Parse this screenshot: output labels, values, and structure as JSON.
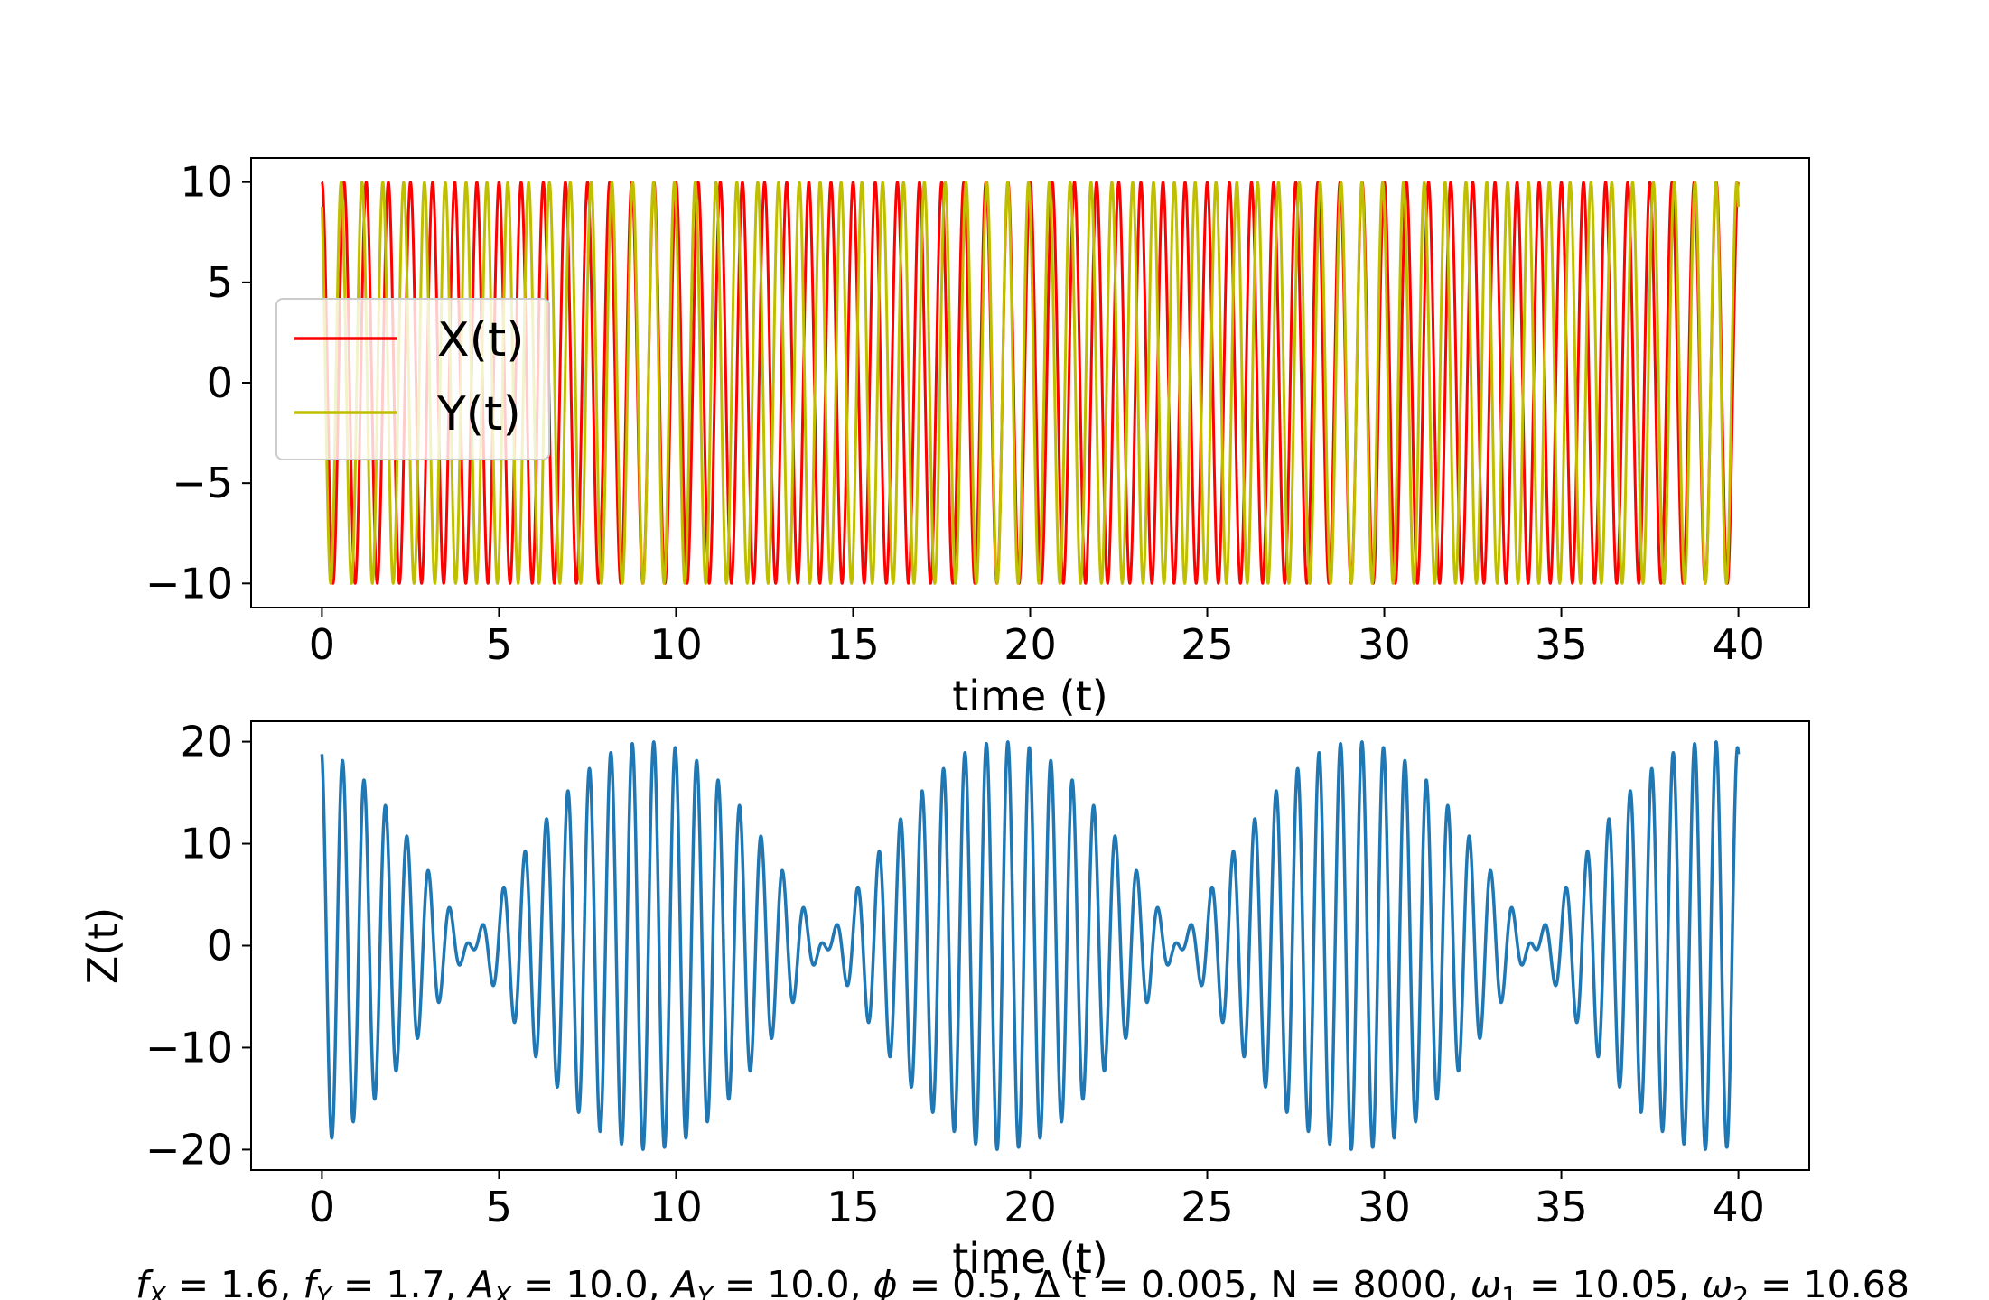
{
  "chart_data": [
    {
      "type": "line",
      "xlabel": "time (t)",
      "ylabel": "",
      "xlim": [
        -2,
        42
      ],
      "ylim": [
        -11.2,
        11.2
      ],
      "x_range": [
        0,
        40
      ],
      "xticks": [
        0,
        5,
        10,
        15,
        20,
        25,
        30,
        35,
        40
      ],
      "xtick_labels": [
        "0",
        "5",
        "10",
        "15",
        "20",
        "25",
        "30",
        "35",
        "40"
      ],
      "yticks": [
        10,
        5,
        0,
        -5,
        -10
      ],
      "ytick_labels": [
        "10",
        "5",
        "0",
        "−5",
        "−10"
      ],
      "legend_position": "center-left",
      "series": [
        {
          "name": "X(t)",
          "color": "#ff0000",
          "amplitude": 10.0,
          "frequency": 1.6,
          "phase": 0.0
        },
        {
          "name": "Y(t)",
          "color": "#bfbf00",
          "amplitude": 10.0,
          "frequency": 1.7,
          "phase": 0.5
        }
      ]
    },
    {
      "type": "line",
      "xlabel": "time (t)",
      "ylabel": "Z(t)",
      "xlim": [
        -2,
        42
      ],
      "ylim": [
        -22,
        22
      ],
      "x_range": [
        0,
        40
      ],
      "xticks": [
        0,
        5,
        10,
        15,
        20,
        25,
        30,
        35,
        40
      ],
      "xtick_labels": [
        "0",
        "5",
        "10",
        "15",
        "20",
        "25",
        "30",
        "35",
        "40"
      ],
      "yticks": [
        20,
        10,
        0,
        -10,
        -20
      ],
      "ytick_labels": [
        "20",
        "10",
        "0",
        "−10",
        "−20"
      ],
      "series": [
        {
          "color": "#1f77b4",
          "definition": "X(t) + Y(t)"
        }
      ]
    }
  ],
  "caption": "f_X = 1.6, f_Y = 1.7, A_X = 10.0, A_Y = 10.0, ϕ = 0.5, Δ t = 0.005, N = 8000, ω_1 = 10.05, ω_2 = 10.68",
  "caption_parts": {
    "fx_sym": "f",
    "fx_sub": "X",
    "fx_val": " = 1.6, ",
    "fy_sym": "f",
    "fy_sub": "Y",
    "fy_val": " = 1.7, ",
    "ax_sym": "A",
    "ax_sub": "X",
    "ax_val": " = 10.0, ",
    "ay_sym": "A",
    "ay_sub": "Y",
    "ay_val": " = 10.0, ",
    "phi_sym": "ϕ",
    "phi_val": " = 0.5, Δ t = 0.005, N = 8000, ",
    "w1_sym": "ω",
    "w1_sub": "1",
    "w1_val": " = 10.05, ",
    "w2_sym": "ω",
    "w2_sub": "2",
    "w2_val": " = 10.68"
  }
}
